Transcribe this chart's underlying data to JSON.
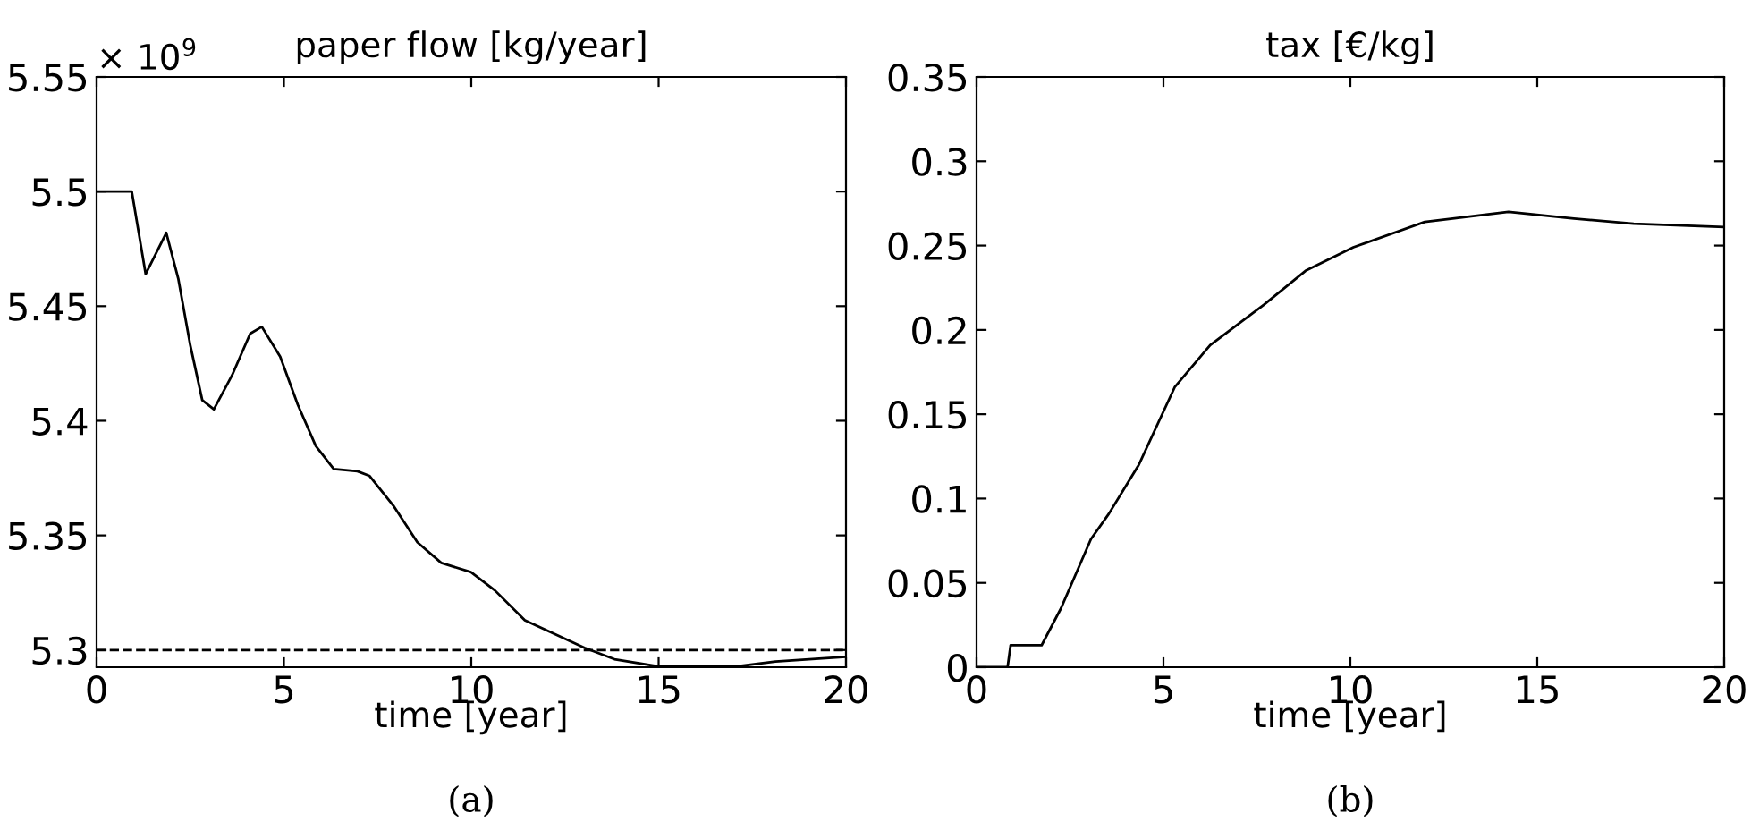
{
  "chart_data": [
    {
      "type": "line",
      "title": "paper flow [kg/year]",
      "xlabel": "time [year]",
      "annotations": [
        "× 10$^{9}$",
        "(a)"
      ],
      "x": [
        0,
        0.94,
        1.31,
        1.86,
        2.18,
        2.5,
        2.82,
        3.13,
        3.62,
        4.1,
        4.41,
        4.9,
        5.37,
        5.85,
        6.33,
        6.96,
        7.28,
        7.92,
        8.56,
        9.2,
        9.99,
        10.63,
        11.43,
        12.22,
        13.02,
        13.82,
        14.93,
        17.16,
        18.12,
        20
      ],
      "series": [
        {
          "color": "#000000",
          "values": [
            5.5,
            5.5,
            5.464,
            5.482,
            5.462,
            5.433,
            5.409,
            5.405,
            5.42,
            5.438,
            5.441,
            5.428,
            5.407,
            5.389,
            5.379,
            5.378,
            5.376,
            5.363,
            5.347,
            5.338,
            5.334,
            5.326,
            5.313,
            5.307,
            5.301,
            5.296,
            5.293,
            5.293,
            5.295,
            5.297
          ]
        }
      ],
      "ref_lines": [
        {
          "axis": "y",
          "value": 5.3,
          "color": "#000000",
          "line_style": "dashed"
        }
      ],
      "xlim": [
        0,
        20
      ],
      "xticks": [
        0,
        5,
        10,
        15,
        20
      ],
      "ylim": [
        5.2925,
        5.55
      ],
      "yticks": [
        5.3,
        5.35,
        5.4,
        5.45,
        5.5,
        5.55
      ],
      "grid": false
    },
    {
      "type": "line",
      "title": "tax [€/kg]",
      "xlabel": "time [year]",
      "annotations": [
        "(b)"
      ],
      "x": [
        0,
        0.83,
        0.91,
        1.74,
        2.26,
        3.06,
        3.54,
        4.34,
        5.3,
        6.25,
        7.69,
        8.8,
        10.08,
        11.99,
        14.23,
        15.98,
        17.58,
        20
      ],
      "series": [
        {
          "color": "#000000",
          "values": [
            0,
            0,
            0.013,
            0.013,
            0.035,
            0.076,
            0.091,
            0.12,
            0.166,
            0.191,
            0.215,
            0.235,
            0.249,
            0.264,
            0.27,
            0.266,
            0.263,
            0.261
          ]
        }
      ],
      "xlim": [
        0,
        20
      ],
      "xticks": [
        0,
        5,
        10,
        15,
        20
      ],
      "ylim": [
        0,
        0.35
      ],
      "yticks": [
        0,
        0.05,
        0.1,
        0.15,
        0.2,
        0.25,
        0.3,
        0.35
      ],
      "grid": false
    }
  ]
}
